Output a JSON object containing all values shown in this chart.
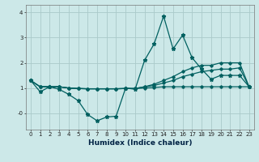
{
  "xlabel": "Humidex (Indice chaleur)",
  "bg_color": "#cce8e8",
  "grid_color": "#aacaca",
  "line_color": "#006060",
  "xlim": [
    -0.5,
    23.5
  ],
  "ylim": [
    -0.65,
    4.3
  ],
  "xticks": [
    0,
    1,
    2,
    3,
    4,
    5,
    6,
    7,
    8,
    9,
    10,
    11,
    12,
    13,
    14,
    15,
    16,
    17,
    18,
    19,
    20,
    21,
    22,
    23
  ],
  "yticks": [
    0,
    1,
    2,
    3,
    4
  ],
  "ytick_labels": [
    "-0",
    "1",
    "2",
    "3",
    "4"
  ],
  "line1_y": [
    1.3,
    0.85,
    1.05,
    0.95,
    0.75,
    0.5,
    -0.05,
    -0.3,
    -0.15,
    -0.12,
    1.0,
    0.95,
    2.1,
    2.75,
    3.85,
    2.55,
    3.1,
    2.2,
    1.75,
    1.35,
    1.5,
    1.5,
    1.5,
    1.05
  ],
  "line2_y": [
    1.3,
    1.05,
    1.05,
    1.05,
    1.0,
    0.98,
    0.97,
    0.97,
    0.97,
    0.97,
    0.98,
    0.98,
    1.0,
    1.02,
    1.05,
    1.05,
    1.05,
    1.05,
    1.05,
    1.05,
    1.05,
    1.05,
    1.05,
    1.05
  ],
  "line3_y": [
    1.3,
    1.05,
    1.05,
    1.05,
    1.0,
    0.98,
    0.97,
    0.97,
    0.97,
    0.97,
    0.98,
    0.98,
    1.05,
    1.1,
    1.2,
    1.3,
    1.45,
    1.55,
    1.65,
    1.7,
    1.75,
    1.75,
    1.8,
    1.05
  ],
  "line4_y": [
    1.3,
    1.05,
    1.05,
    1.05,
    1.0,
    0.98,
    0.97,
    0.97,
    0.97,
    0.97,
    0.98,
    0.98,
    1.05,
    1.15,
    1.3,
    1.45,
    1.65,
    1.8,
    1.9,
    1.9,
    2.0,
    2.0,
    2.0,
    1.05
  ]
}
